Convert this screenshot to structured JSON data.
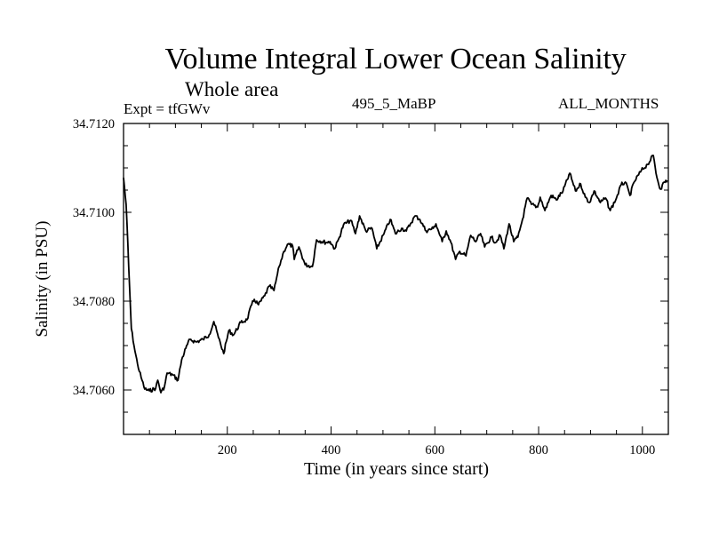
{
  "header": {
    "title": "Volume Integral Lower Ocean Salinity",
    "subtitle": "Whole area",
    "experiment": "Expt = tfGWv",
    "period": "495_5_MaBP",
    "months": "ALL_MONTHS"
  },
  "chart_data": {
    "type": "line",
    "title": "Volume Integral Lower Ocean Salinity",
    "subtitle": "Whole area",
    "annotations": [
      "Expt = tfGWv",
      "495_5_MaBP",
      "ALL_MONTHS"
    ],
    "xlabel": "Time (in years since start)",
    "ylabel": "Salinity (in PSU)",
    "xlim": [
      0,
      1050
    ],
    "ylim": [
      34.705,
      34.712
    ],
    "x_major_ticks": [
      200,
      400,
      600,
      800,
      1000
    ],
    "x_tick_labels": [
      "200",
      "400",
      "600",
      "800",
      "1000"
    ],
    "x_minor_step": 50,
    "y_major_ticks": [
      34.706,
      34.708,
      34.71,
      34.712
    ],
    "y_tick_labels": [
      "34.7060",
      "34.7080",
      "34.7100",
      "34.7120"
    ],
    "y_minor_step": 0.0005,
    "grid": false,
    "legend": "none",
    "series": [
      {
        "name": "Salinity",
        "color": "#000000",
        "x": [
          0,
          5,
          10,
          15,
          22,
          27,
          34,
          41,
          50,
          62,
          66,
          72,
          79,
          84,
          95,
          105,
          112,
          120,
          128,
          140,
          153,
          165,
          174,
          183,
          193,
          203,
          212,
          226,
          238,
          247,
          252,
          260,
          272,
          281,
          290,
          295,
          300,
          309,
          316,
          326,
          329,
          338,
          350,
          364,
          372,
          390,
          398,
          407,
          416,
          424,
          438,
          447,
          455,
          467,
          479,
          488,
          502,
          514,
          524,
          536,
          545,
          553,
          562,
          571,
          583,
          597,
          602,
          614,
          622,
          631,
          640,
          648,
          660,
          669,
          679,
          688,
          696,
          709,
          717,
          726,
          733,
          743,
          752,
          760,
          769,
          778,
          786,
          798,
          803,
          812,
          824,
          834,
          847,
          860,
          871,
          881,
          890,
          898,
          907,
          919,
          929,
          938,
          950,
          959,
          967,
          976,
          984,
          998,
          1010,
          1021,
          1028,
          1035,
          1042,
          1048
        ],
        "y": [
          34.71078,
          34.71018,
          34.70878,
          34.70738,
          34.70688,
          34.70658,
          34.70628,
          34.70602,
          34.70598,
          34.70604,
          34.70622,
          34.70594,
          34.70608,
          34.70638,
          34.70634,
          34.70622,
          34.70668,
          34.70694,
          34.70714,
          34.70708,
          34.70714,
          34.70724,
          34.70754,
          34.70718,
          34.70682,
          34.70734,
          34.70724,
          34.70752,
          34.70758,
          34.70792,
          34.70804,
          34.70792,
          34.70812,
          34.70834,
          34.70824,
          34.70852,
          34.70878,
          34.70912,
          34.70928,
          34.70924,
          34.70894,
          34.70922,
          34.70882,
          34.70878,
          34.70938,
          34.70932,
          34.70934,
          34.70918,
          34.70944,
          34.70972,
          34.70982,
          34.70952,
          34.70992,
          34.70958,
          34.70964,
          34.70918,
          34.70952,
          34.70984,
          34.70952,
          34.70964,
          34.70958,
          34.70974,
          34.70992,
          34.70984,
          34.70958,
          34.70964,
          34.70974,
          34.70934,
          34.70958,
          34.70932,
          34.70894,
          34.70912,
          34.70902,
          34.70948,
          34.70934,
          34.70952,
          34.70922,
          34.70944,
          34.70932,
          34.70948,
          34.70918,
          34.70974,
          34.70934,
          34.70944,
          34.70984,
          34.71032,
          34.71018,
          34.71012,
          34.71034,
          34.71004,
          34.71038,
          34.71028,
          34.71048,
          34.71088,
          34.71048,
          34.71064,
          34.71034,
          34.71022,
          34.71048,
          34.71022,
          34.71032,
          34.71004,
          34.71032,
          34.71062,
          34.71068,
          34.71038,
          34.71068,
          34.71094,
          34.71108,
          34.71128,
          34.71078,
          34.71052,
          34.71068,
          34.71072
        ]
      }
    ]
  }
}
